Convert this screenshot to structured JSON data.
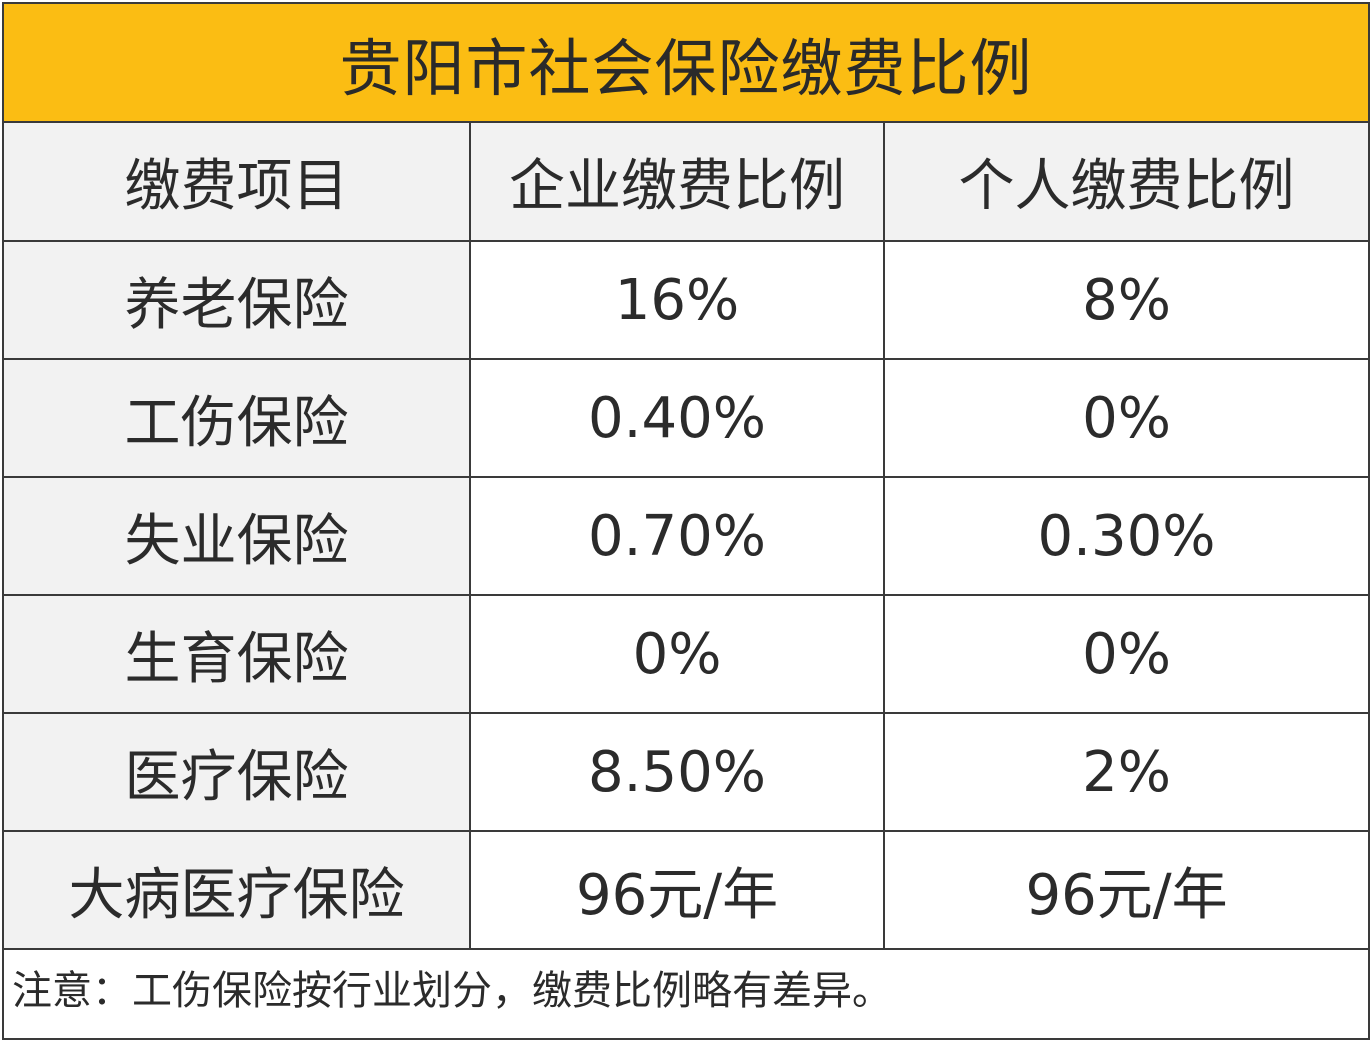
{
  "title": "贵阳市社会保险缴费比例",
  "table": {
    "headers": [
      "缴费项目",
      "企业缴费比例",
      "个人缴费比例"
    ],
    "rows": [
      {
        "item": "养老保险",
        "company": "16%",
        "personal": "8%"
      },
      {
        "item": "工伤保险",
        "company": "0.40%",
        "personal": "0%"
      },
      {
        "item": "失业保险",
        "company": "0.70%",
        "personal": "0.30%"
      },
      {
        "item": "生育保险",
        "company": "0%",
        "personal": "0%"
      },
      {
        "item": "医疗保险",
        "company": "8.50%",
        "personal": "2%"
      },
      {
        "item": "大病医疗保险",
        "company": "96元/年",
        "personal": "96元/年"
      }
    ]
  },
  "note": "注意：工伤保险按行业划分，缴费比例略有差异。",
  "colors": {
    "title_background": "#fbbd13",
    "label_background": "#f2f2f2",
    "border": "#3a3a3a"
  }
}
